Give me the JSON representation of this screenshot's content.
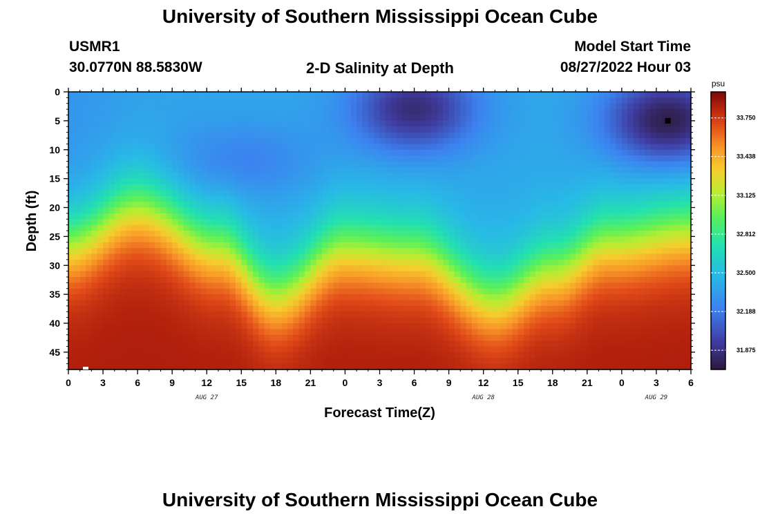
{
  "header": {
    "title": "University of Southern Mississippi Ocean Cube",
    "station": "USMR1",
    "coords": "30.0770N  88.5830W",
    "subtitle": "2-D Salinity at Depth",
    "model_start_label": "Model Start Time",
    "model_start_value": "08/27/2022 Hour 03"
  },
  "footer": {
    "title": "University of Southern Mississippi Ocean Cube"
  },
  "chart_data": {
    "type": "heatmap",
    "title": "2-D Salinity at Depth",
    "xlabel": "Forecast Time(Z)",
    "ylabel": "Depth (ft)",
    "x_range_hours": [
      0,
      54
    ],
    "y_range_ft": [
      0,
      48
    ],
    "x_ticks": [
      {
        "h": 0,
        "label": "0"
      },
      {
        "h": 3,
        "label": "3"
      },
      {
        "h": 6,
        "label": "6"
      },
      {
        "h": 9,
        "label": "9"
      },
      {
        "h": 12,
        "label": "12"
      },
      {
        "h": 15,
        "label": "15"
      },
      {
        "h": 18,
        "label": "18"
      },
      {
        "h": 21,
        "label": "21"
      },
      {
        "h": 24,
        "label": "0"
      },
      {
        "h": 27,
        "label": "3"
      },
      {
        "h": 30,
        "label": "6"
      },
      {
        "h": 33,
        "label": "9"
      },
      {
        "h": 36,
        "label": "12"
      },
      {
        "h": 39,
        "label": "15"
      },
      {
        "h": 42,
        "label": "18"
      },
      {
        "h": 45,
        "label": "21"
      },
      {
        "h": 48,
        "label": "0"
      },
      {
        "h": 51,
        "label": "3"
      },
      {
        "h": 54,
        "label": "6"
      }
    ],
    "y_ticks": [
      {
        "d": 0,
        "label": "0"
      },
      {
        "d": 5,
        "label": "5"
      },
      {
        "d": 10,
        "label": "10"
      },
      {
        "d": 15,
        "label": "15"
      },
      {
        "d": 20,
        "label": "20"
      },
      {
        "d": 25,
        "label": "25"
      },
      {
        "d": 30,
        "label": "30"
      },
      {
        "d": 35,
        "label": "35"
      },
      {
        "d": 40,
        "label": "40"
      },
      {
        "d": 45,
        "label": "45"
      }
    ],
    "date_labels": [
      {
        "h": 12,
        "label": "AUG 27"
      },
      {
        "h": 36,
        "label": "AUG 28"
      },
      {
        "h": 51,
        "label": "AUG 29"
      }
    ],
    "colorbar": {
      "unit": "psu",
      "range": [
        31.72,
        33.96
      ],
      "ticks": [
        "33.750",
        "33.438",
        "33.125",
        "32.812",
        "32.500",
        "32.188",
        "31.875"
      ],
      "tick_values": [
        33.75,
        33.438,
        33.125,
        32.812,
        32.5,
        32.188,
        31.875
      ]
    },
    "markers": [
      {
        "type": "max",
        "h": 52,
        "d": 5,
        "color": "#000000"
      },
      {
        "type": "min",
        "h": 1.5,
        "d": 48,
        "color": "#ffffff"
      }
    ],
    "interface_depth_ft": [
      {
        "h": 0,
        "d": 26
      },
      {
        "h": 6,
        "d": 20
      },
      {
        "h": 13,
        "d": 27
      },
      {
        "h": 18,
        "d": 35
      },
      {
        "h": 24,
        "d": 27
      },
      {
        "h": 30,
        "d": 28
      },
      {
        "h": 37,
        "d": 36
      },
      {
        "h": 42,
        "d": 31
      },
      {
        "h": 47,
        "d": 26
      },
      {
        "h": 54,
        "d": 24
      }
    ],
    "fresh_patches": [
      {
        "h": 30,
        "d": 3,
        "amplitude_psu": 0.55
      },
      {
        "h": 52,
        "d": 5,
        "amplitude_psu": 0.65
      }
    ],
    "surface_salinity_psu": 32.4,
    "deep_salinity_psu": 33.85
  }
}
